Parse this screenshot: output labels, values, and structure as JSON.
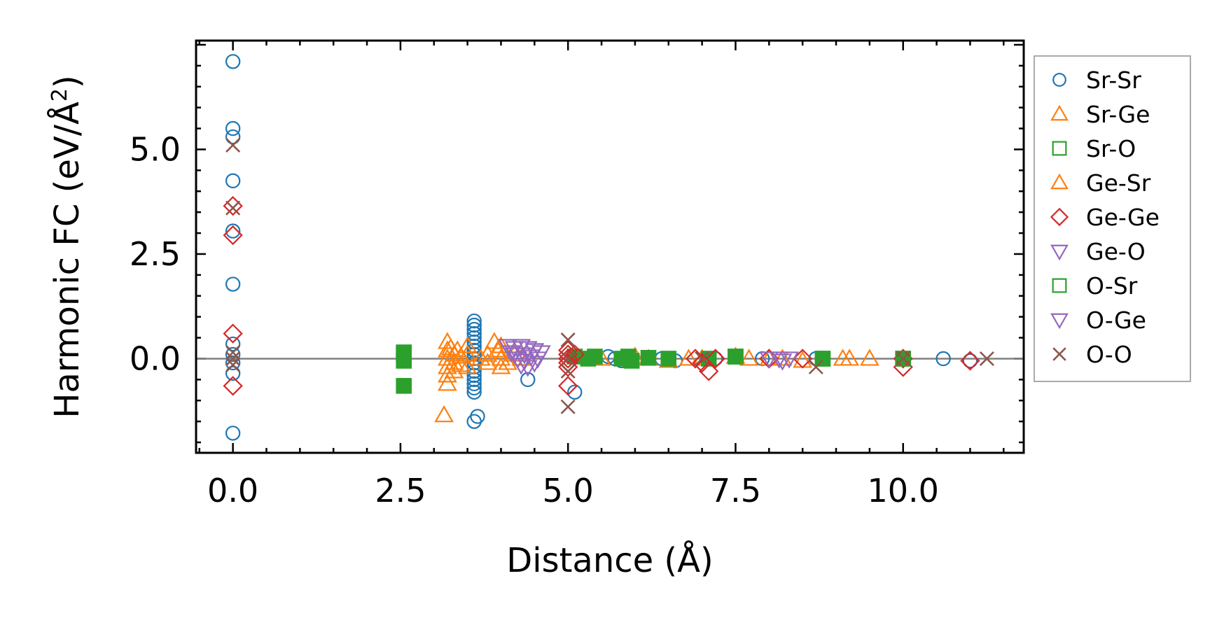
{
  "chart_data": {
    "type": "scatter",
    "title": "",
    "xlabel": "Distance (Å)",
    "ylabel": "Harmonic FC (eV/Å",
    "ylabel_superscript": "2",
    "ylabel_suffix": ")",
    "xlim": [
      -0.55,
      11.8
    ],
    "ylim": [
      -2.25,
      7.6
    ],
    "xticks": [
      0.0,
      2.5,
      5.0,
      7.5,
      10.0
    ],
    "xtick_labels": [
      "0.0",
      "2.5",
      "5.0",
      "7.5",
      "10.0"
    ],
    "yticks": [
      0.0,
      2.5,
      5.0
    ],
    "ytick_labels": [
      "0.0",
      "2.5",
      "5.0"
    ],
    "reference_line_y": 0,
    "legend_position": "outside-right",
    "series": [
      {
        "name": "Sr-Sr",
        "marker": "circle",
        "color": "#1f77b4",
        "points": [
          [
            0,
            7.1
          ],
          [
            0,
            5.5
          ],
          [
            0,
            5.3
          ],
          [
            0,
            4.25
          ],
          [
            0,
            3.05
          ],
          [
            0,
            1.78
          ],
          [
            0,
            0.35
          ],
          [
            0,
            0.1
          ],
          [
            0,
            -0.1
          ],
          [
            0,
            -0.35
          ],
          [
            0,
            -1.78
          ],
          [
            3.6,
            0.9
          ],
          [
            3.6,
            0.8
          ],
          [
            3.6,
            0.7
          ],
          [
            3.6,
            0.6
          ],
          [
            3.6,
            0.5
          ],
          [
            3.6,
            0.4
          ],
          [
            3.6,
            0.3
          ],
          [
            3.6,
            0.2
          ],
          [
            3.6,
            0.1
          ],
          [
            3.6,
            0.0
          ],
          [
            3.6,
            -0.1
          ],
          [
            3.6,
            -0.2
          ],
          [
            3.6,
            -0.3
          ],
          [
            3.6,
            -0.4
          ],
          [
            3.6,
            -0.5
          ],
          [
            3.6,
            -0.6
          ],
          [
            3.6,
            -0.7
          ],
          [
            3.6,
            -0.8
          ],
          [
            3.6,
            -1.5
          ],
          [
            3.65,
            -1.38
          ],
          [
            4.4,
            -0.5
          ],
          [
            5.1,
            -0.8
          ],
          [
            5.6,
            0.05
          ],
          [
            5.7,
            0.0
          ],
          [
            5.8,
            -0.05
          ],
          [
            6.2,
            0.02
          ],
          [
            6.4,
            0.0
          ],
          [
            6.6,
            -0.05
          ],
          [
            7.2,
            0.0
          ],
          [
            7.9,
            0.0
          ],
          [
            8.7,
            0.0
          ],
          [
            10.6,
            0.0
          ],
          [
            11.0,
            -0.05
          ]
        ]
      },
      {
        "name": "Sr-Ge",
        "marker": "triangle-up",
        "color": "#ff7f0e",
        "points": [
          [
            3.2,
            0.4
          ],
          [
            3.2,
            0.2
          ],
          [
            3.2,
            0.0
          ],
          [
            3.2,
            -0.2
          ],
          [
            3.2,
            -0.4
          ],
          [
            3.2,
            -0.6
          ],
          [
            3.25,
            0.25
          ],
          [
            3.3,
            0.1
          ],
          [
            3.3,
            -0.1
          ],
          [
            3.35,
            0.2
          ],
          [
            3.4,
            0.05
          ],
          [
            3.4,
            -0.15
          ],
          [
            3.5,
            0.1
          ],
          [
            3.5,
            -0.2
          ],
          [
            3.8,
            0.1
          ],
          [
            3.8,
            -0.1
          ],
          [
            3.9,
            0.4
          ],
          [
            3.95,
            0.2
          ],
          [
            4.0,
            0.0
          ],
          [
            4.0,
            0.3
          ],
          [
            4.1,
            -0.1
          ],
          [
            4.2,
            0.1
          ],
          [
            5.5,
            0.0
          ],
          [
            6.0,
            0.05
          ],
          [
            6.2,
            0.0
          ],
          [
            6.5,
            -0.05
          ],
          [
            7.0,
            0.0
          ],
          [
            7.5,
            0.05
          ],
          [
            8.0,
            0.0
          ],
          [
            8.5,
            -0.05
          ],
          [
            9.1,
            0.0
          ],
          [
            9.5,
            0.0
          ],
          [
            3.15,
            -1.35
          ]
        ]
      },
      {
        "name": "Sr-O",
        "marker": "square",
        "color": "#2ca02c",
        "filled": true,
        "points": [
          [
            2.55,
            0.12
          ],
          [
            2.55,
            -0.05
          ],
          [
            2.55,
            -0.65
          ],
          [
            5.1,
            0.05
          ],
          [
            5.3,
            0.0
          ],
          [
            5.4,
            0.05
          ],
          [
            5.8,
            0.0
          ],
          [
            5.9,
            0.05
          ],
          [
            5.95,
            -0.05
          ],
          [
            6.2,
            0.02
          ],
          [
            6.5,
            0.0
          ],
          [
            7.1,
            0.0
          ],
          [
            7.5,
            0.05
          ],
          [
            8.8,
            0.0
          ],
          [
            10.0,
            0.0
          ]
        ]
      },
      {
        "name": "Ge-Sr",
        "marker": "triangle-up",
        "color": "#ff7f0e",
        "points": [
          [
            3.3,
            -0.3
          ],
          [
            3.5,
            0.3
          ],
          [
            3.7,
            0.0
          ],
          [
            4.0,
            -0.2
          ],
          [
            4.3,
            0.0
          ],
          [
            6.8,
            0.0
          ],
          [
            7.7,
            0.0
          ],
          [
            8.2,
            0.0
          ],
          [
            9.2,
            0.0
          ]
        ]
      },
      {
        "name": "Ge-Ge",
        "marker": "diamond",
        "color": "#d62728",
        "points": [
          [
            0,
            3.65
          ],
          [
            0,
            2.95
          ],
          [
            0,
            0.6
          ],
          [
            0,
            -0.65
          ],
          [
            5.0,
            0.2
          ],
          [
            5.0,
            0.1
          ],
          [
            5.0,
            0.0
          ],
          [
            5.0,
            -0.1
          ],
          [
            5.0,
            -0.2
          ],
          [
            5.0,
            -0.65
          ],
          [
            5.1,
            0.1
          ],
          [
            6.9,
            0.0
          ],
          [
            7.0,
            -0.1
          ],
          [
            7.1,
            -0.3
          ],
          [
            7.2,
            0.0
          ],
          [
            8.0,
            0.0
          ],
          [
            8.5,
            0.0
          ],
          [
            10.0,
            0.0
          ],
          [
            10.0,
            -0.2
          ],
          [
            11.0,
            -0.05
          ]
        ]
      },
      {
        "name": "Ge-O",
        "marker": "triangle-down",
        "color": "#9467bd",
        "points": [
          [
            4.1,
            0.3
          ],
          [
            4.15,
            0.15
          ],
          [
            4.2,
            0.25
          ],
          [
            4.25,
            0.0
          ],
          [
            4.3,
            0.3
          ],
          [
            4.3,
            -0.15
          ],
          [
            4.35,
            0.1
          ],
          [
            4.4,
            0.25
          ],
          [
            4.4,
            -0.2
          ],
          [
            4.45,
            0.05
          ],
          [
            4.5,
            0.2
          ],
          [
            4.5,
            -0.1
          ],
          [
            4.55,
            0.0
          ],
          [
            4.6,
            0.15
          ],
          [
            8.0,
            0.0
          ],
          [
            8.2,
            -0.05
          ],
          [
            8.3,
            0.0
          ]
        ]
      },
      {
        "name": "O-Sr",
        "marker": "square",
        "color": "#2ca02c",
        "filled": false,
        "points": [
          [
            2.55,
            0.15
          ],
          [
            7.5,
            0.05
          ],
          [
            8.8,
            0.0
          ],
          [
            10.0,
            0.0
          ]
        ]
      },
      {
        "name": "O-Ge",
        "marker": "triangle-down",
        "color": "#9467bd",
        "points": [
          [
            4.2,
            0.1
          ],
          [
            4.35,
            -0.05
          ],
          [
            4.5,
            0.2
          ],
          [
            8.15,
            0.0
          ]
        ]
      },
      {
        "name": "O-O",
        "marker": "x",
        "color": "#8c564b",
        "points": [
          [
            0,
            5.1
          ],
          [
            0,
            3.6
          ],
          [
            0,
            0.15
          ],
          [
            0,
            0.0
          ],
          [
            0,
            -0.15
          ],
          [
            5.0,
            0.45
          ],
          [
            5.0,
            0.0
          ],
          [
            5.0,
            -0.3
          ],
          [
            5.0,
            -1.15
          ],
          [
            7.0,
            0.0
          ],
          [
            8.7,
            -0.2
          ],
          [
            11.25,
            0.0
          ],
          [
            10.0,
            0.0
          ]
        ]
      }
    ]
  }
}
